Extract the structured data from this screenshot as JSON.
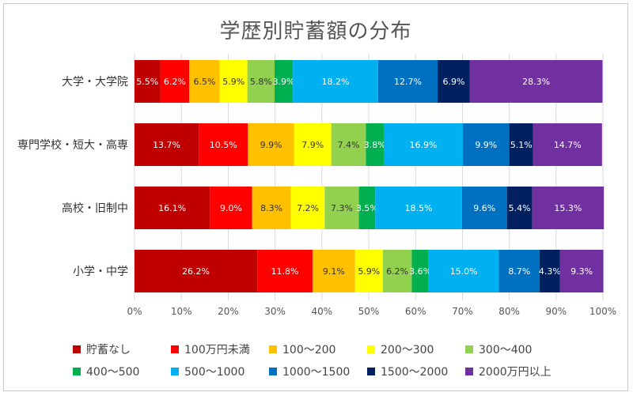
{
  "chart_data": {
    "type": "bar",
    "orientation": "horizontal",
    "stacked": "percent",
    "title": "学歴別貯蓄額の分布",
    "categories": [
      "大学・大学院",
      "専門学校・短大・高専",
      "高校・旧制中",
      "小学・中学"
    ],
    "series": [
      {
        "name": "貯蓄なし",
        "color": "#c00000",
        "values": [
          5.5,
          13.7,
          16.1,
          26.2
        ],
        "labels": [
          "5.5%",
          "13.7%",
          "16.1%",
          "26.2%"
        ]
      },
      {
        "name": "100万円未満",
        "color": "#ff0000",
        "values": [
          6.2,
          10.5,
          9.0,
          11.8
        ],
        "labels": [
          "6.2%",
          "10.5%",
          "9.0%",
          "11.8%"
        ]
      },
      {
        "name": "100〜200",
        "color": "#ffc000",
        "values": [
          6.5,
          9.9,
          8.3,
          9.1
        ],
        "labels": [
          "6.5%",
          "9.9%",
          "8.3%",
          "9.1%"
        ]
      },
      {
        "name": "200〜300",
        "color": "#ffff00",
        "values": [
          5.9,
          7.9,
          7.2,
          5.9
        ],
        "labels": [
          "5.9%",
          "7.9%",
          "7.2%",
          "5.9%"
        ]
      },
      {
        "name": "300〜400",
        "color": "#92d050",
        "values": [
          5.8,
          7.4,
          7.3,
          6.2
        ],
        "labels": [
          "5.8%",
          "7.4%",
          "7.3%",
          "6.2%"
        ]
      },
      {
        "name": "400〜500",
        "color": "#00b050",
        "values": [
          3.9,
          3.8,
          3.5,
          3.6
        ],
        "labels": [
          "3.9%",
          "3.8%",
          "3.5%",
          "3.6%"
        ]
      },
      {
        "name": "500〜1000",
        "color": "#00b0f0",
        "values": [
          18.2,
          16.9,
          18.5,
          15.0
        ],
        "labels": [
          "18.2%",
          "16.9%",
          "18.5%",
          "15.0%"
        ]
      },
      {
        "name": "1000〜1500",
        "color": "#0070c0",
        "values": [
          12.7,
          9.9,
          9.6,
          8.7
        ],
        "labels": [
          "12.7%",
          "9.9%",
          "9.6%",
          "8.7%"
        ]
      },
      {
        "name": "1500〜2000",
        "color": "#002060",
        "values": [
          6.9,
          5.1,
          5.4,
          4.3
        ],
        "labels": [
          "6.9%",
          "5.1%",
          "5.4%",
          "4.3%"
        ]
      },
      {
        "name": "2000万円以上",
        "color": "#7030a0",
        "values": [
          28.3,
          14.7,
          15.3,
          9.3
        ],
        "labels": [
          "28.3%",
          "14.7%",
          "15.3%",
          "9.3%"
        ]
      }
    ],
    "label_colors": {
      "dark_on": [
        "#ffc000",
        "#ffff00",
        "#92d050"
      ],
      "dark": "#333333",
      "light": "#ffffff"
    },
    "x_ticks": [
      "0%",
      "10%",
      "20%",
      "30%",
      "40%",
      "50%",
      "60%",
      "70%",
      "80%",
      "90%",
      "100%"
    ],
    "xlim": [
      0,
      100
    ],
    "grid": true,
    "legend_position": "bottom"
  }
}
